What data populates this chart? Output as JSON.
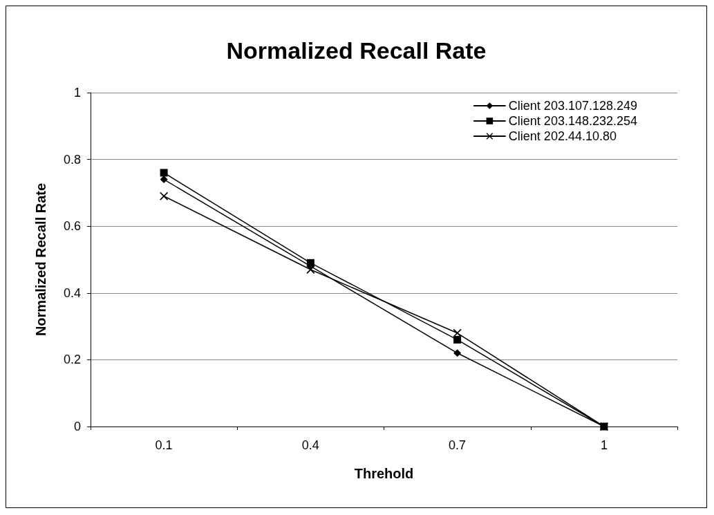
{
  "chart_data": {
    "type": "line",
    "title": "Normalized Recall Rate",
    "xlabel": "Threhold",
    "ylabel": "Normalized Recall Rate",
    "categories": [
      "0.1",
      "0.4",
      "0.7",
      "1"
    ],
    "series": [
      {
        "name": "Client 203.107.128.249",
        "color": "#000000",
        "marker": "diamond",
        "values": [
          0.74,
          0.48,
          0.22,
          0
        ]
      },
      {
        "name": "Client 203.148.232.254",
        "color": "#000000",
        "marker": "square",
        "values": [
          0.76,
          0.49,
          0.26,
          0
        ]
      },
      {
        "name": "Client 202.44.10.80",
        "color": "#000000",
        "marker": "cross",
        "values": [
          0.69,
          0.47,
          0.28,
          0
        ]
      }
    ],
    "ylim": [
      0,
      1
    ],
    "yticks": [
      0,
      0.2,
      0.4,
      0.6,
      0.8,
      1
    ],
    "grid": "y",
    "legend": "top right",
    "line_style": "solid"
  }
}
